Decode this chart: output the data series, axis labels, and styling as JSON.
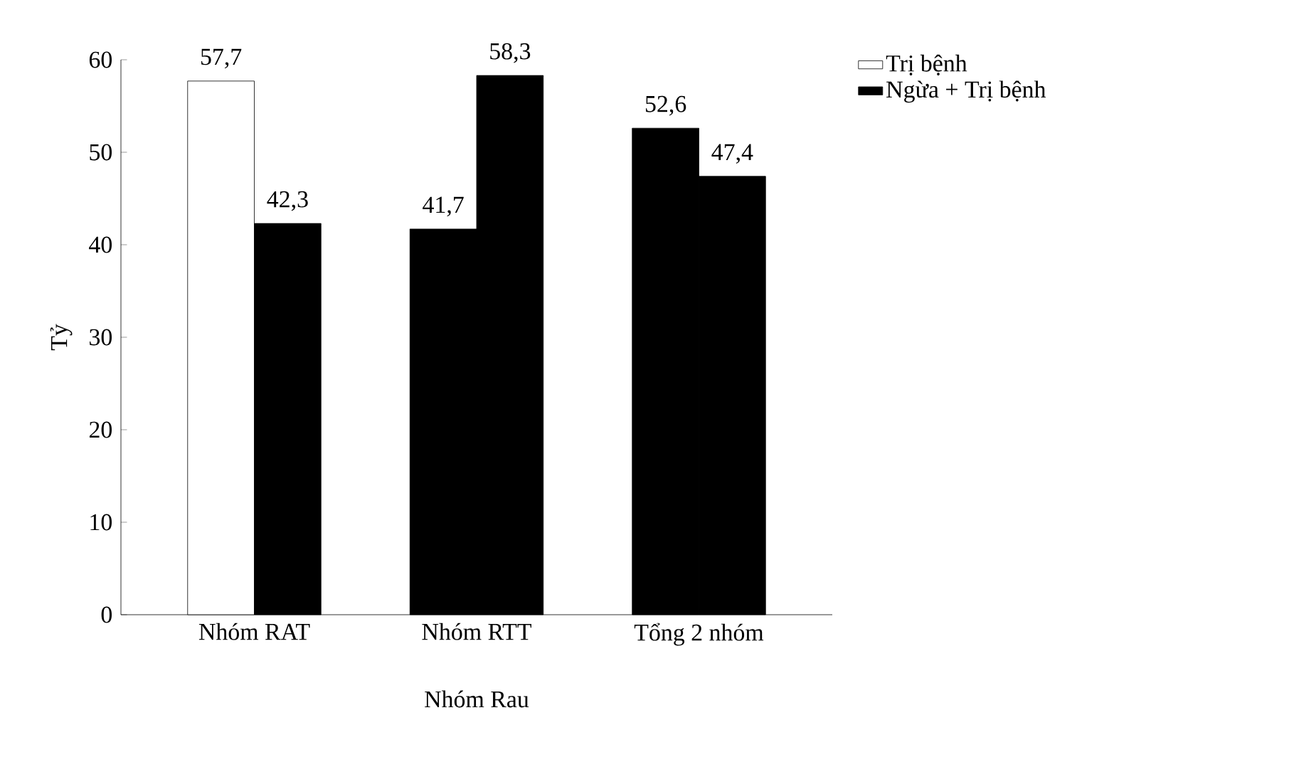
{
  "chart_data": {
    "type": "bar",
    "xlabel": "Nhóm Rau",
    "ylabel": "Tỷ",
    "categories": [
      "Nhóm RAT",
      "Nhóm RTT",
      "Tổng 2 nhóm"
    ],
    "series": [
      {
        "name": "Trị bệnh",
        "color": "#ffffff",
        "colors": [
          "#ffffff",
          "#000000",
          "#000000"
        ],
        "values": [
          57.7,
          41.7,
          52.6
        ],
        "value_labels": [
          "57,7",
          "41,7",
          "52,6"
        ]
      },
      {
        "name": "Ngừa + Trị bệnh",
        "color": "#000000",
        "values": [
          42.3,
          58.3,
          47.4
        ],
        "value_labels": [
          "42,3",
          "58,3",
          "47,4"
        ]
      }
    ],
    "ylim": [
      0,
      60
    ],
    "yticks": [
      0,
      10,
      20,
      30,
      40,
      50,
      60
    ],
    "legend": "top right"
  }
}
